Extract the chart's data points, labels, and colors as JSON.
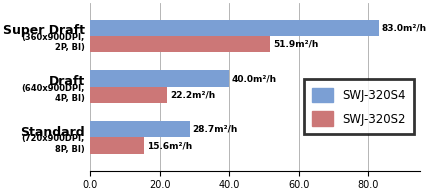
{
  "categories": [
    "Standard\n(720x900DPI,\n8P, BI)",
    "Draft\n(640x900DPI,\n4P, BI)",
    "Super Draft\n(360x900DPI,\n2P, BI)"
  ],
  "s4_values": [
    28.7,
    40.0,
    83.0
  ],
  "s2_values": [
    15.6,
    22.2,
    51.9
  ],
  "s4_labels": [
    "28.7m²/h",
    "40.0m²/h",
    "83.0m²/h"
  ],
  "s2_labels": [
    "15.6m²/h",
    "22.2m²/h",
    "51.9m²/h"
  ],
  "s4_color": "#7B9FD4",
  "s2_color": "#CC7777",
  "xlim": [
    0,
    95
  ],
  "xticks": [
    0.0,
    20.0,
    40.0,
    60.0,
    80.0
  ],
  "legend_labels": [
    "SWJ-320S4",
    "SWJ-320S2"
  ],
  "bar_height": 0.32,
  "label_fontsize": 6.5,
  "category_main_fontsize": 9,
  "category_sub_fontsize": 6,
  "tick_fontsize": 7,
  "legend_fontsize": 8.5
}
